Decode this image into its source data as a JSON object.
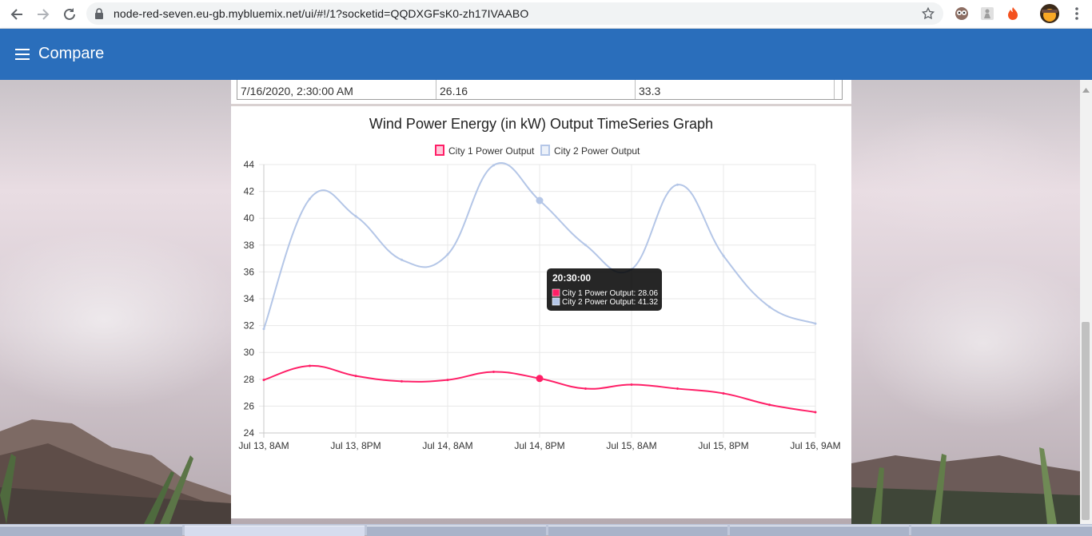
{
  "browser": {
    "url": "node-red-seven.eu-gb.mybluemix.net/ui/#!/1?socketid=QQDXGFsK0-zh17IVAABO"
  },
  "app": {
    "title": "Compare"
  },
  "table": {
    "row": [
      "7/16/2020, 2:30:00 AM",
      "26.16",
      "33.3"
    ]
  },
  "chart_data": {
    "type": "line",
    "title": "Wind Power Energy (in kW) Output TimeSeries Graph",
    "x_tick_labels": [
      "Jul 13, 8AM",
      "Jul 13, 8PM",
      "Jul 14, 8AM",
      "Jul 14, 8PM",
      "Jul 15, 8AM",
      "Jul 15, 8PM",
      "Jul 16, 9AM"
    ],
    "y_ticks": [
      24,
      26,
      28,
      30,
      32,
      34,
      36,
      38,
      40,
      42,
      44
    ],
    "ylim": [
      24,
      44
    ],
    "x": [
      "Jul 13, 8:30AM",
      "Jul 13, 2:30PM",
      "Jul 13, 8:30PM",
      "Jul 14, 2:30AM",
      "Jul 14, 8:30AM",
      "Jul 14, 2:30PM",
      "Jul 14, 8:30PM",
      "Jul 15, 2:30AM",
      "Jul 15, 8:30AM",
      "Jul 15, 2:30PM",
      "Jul 15, 8:30PM",
      "Jul 16, 2:30AM",
      "Jul 16, 8:30AM"
    ],
    "grid": true,
    "legend_position": "top",
    "series": [
      {
        "name": "City 1 Power Output",
        "color": "#ff1f67",
        "values": [
          27.95,
          29.0,
          28.25,
          27.85,
          27.95,
          28.55,
          28.06,
          27.3,
          27.6,
          27.3,
          26.95,
          26.1,
          25.55
        ]
      },
      {
        "name": "City 2 Power Output",
        "color": "#b4c6e7",
        "values": [
          31.75,
          41.45,
          40.15,
          36.9,
          37.3,
          43.95,
          41.32,
          38.0,
          36.2,
          42.5,
          37.2,
          33.4,
          32.15
        ]
      }
    ],
    "tooltip": {
      "title": "20:30:00",
      "index": 6,
      "lines": [
        "City 1 Power Output: 28.06",
        "City 2 Power Output: 41.32"
      ]
    }
  }
}
